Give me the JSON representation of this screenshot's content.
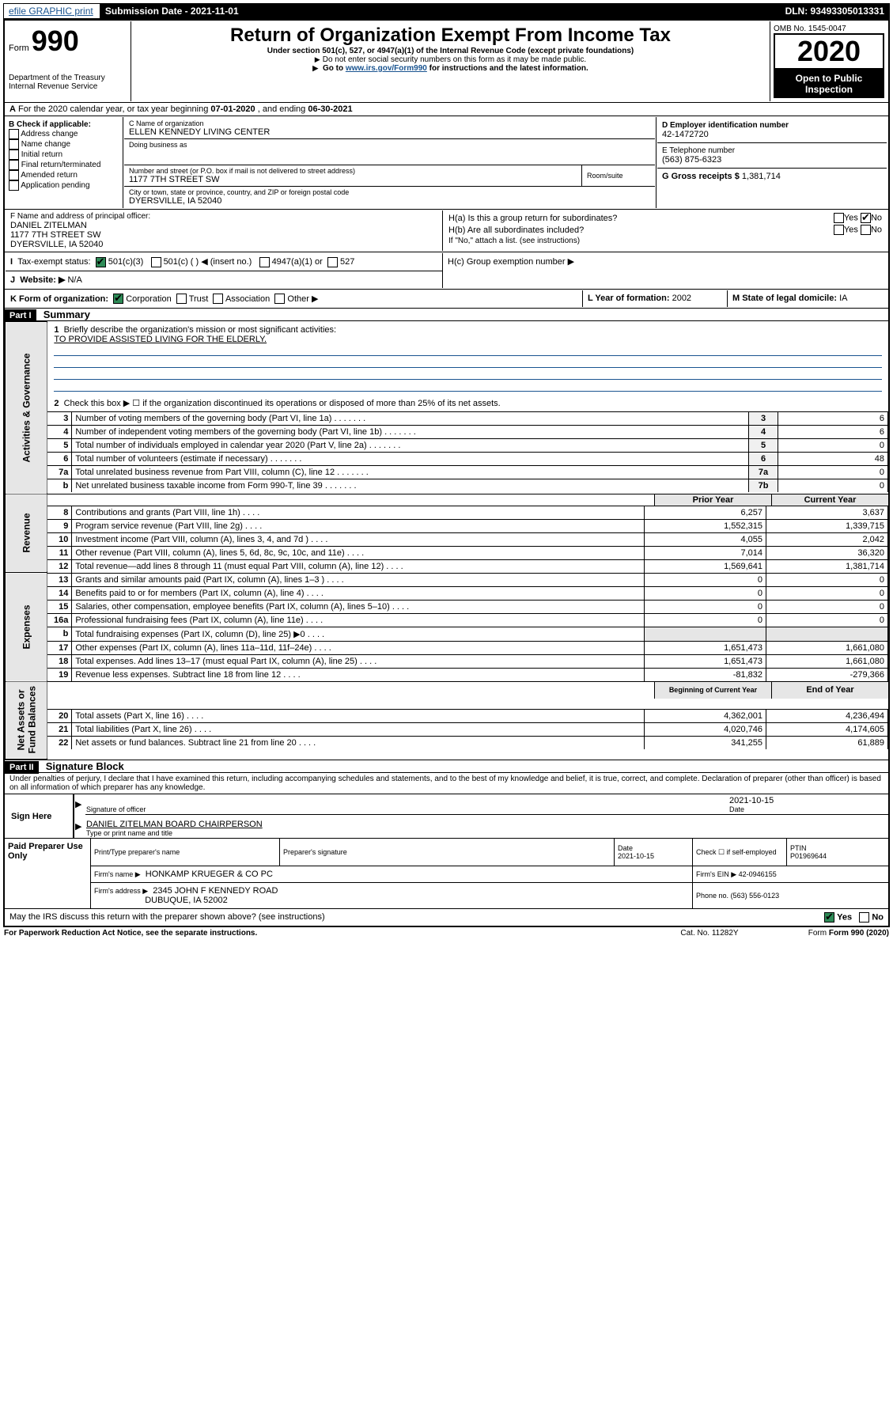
{
  "topbar": {
    "efile": "efile GRAPHIC print",
    "submission": "Submission Date - 2021-11-01",
    "dln": "DLN: 93493305013331"
  },
  "header": {
    "form_word": "Form",
    "form_no": "990",
    "title": "Return of Organization Exempt From Income Tax",
    "subtitle": "Under section 501(c), 527, or 4947(a)(1) of the Internal Revenue Code (except private foundations)",
    "note1": "Do not enter social security numbers on this form as it may be made public.",
    "note2_a": "Go to ",
    "note2_link": "www.irs.gov/Form990",
    "note2_b": " for instructions and the latest information.",
    "dept": "Department of the Treasury\nInternal Revenue Service",
    "omb": "OMB No. 1545-0047",
    "year": "2020",
    "open": "Open to Public\nInspection"
  },
  "A": {
    "text_a": "For the 2020 calendar year, or tax year beginning ",
    "begin": "07-01-2020",
    "text_b": " , and ending ",
    "end": "06-30-2021"
  },
  "B": {
    "label": "B Check if applicable:",
    "items": [
      "Address change",
      "Name change",
      "Initial return",
      "Final return/terminated",
      "Amended return",
      "Application pending"
    ]
  },
  "C": {
    "label": "C Name of organization",
    "org": "ELLEN KENNEDY LIVING CENTER",
    "dba_label": "Doing business as",
    "addr_label": "Number and street (or P.O. box if mail is not delivered to street address)",
    "room_label": "Room/suite",
    "addr": "1177 7TH STREET SW",
    "city_label": "City or town, state or province, country, and ZIP or foreign postal code",
    "city": "DYERSVILLE, IA  52040"
  },
  "D": {
    "label": "D Employer identification number",
    "val": "42-1472720"
  },
  "E": {
    "label": "E Telephone number",
    "val": "(563) 875-6323"
  },
  "G": {
    "label": "G Gross receipts $",
    "val": "1,381,714"
  },
  "F": {
    "label": "F  Name and address of principal officer:",
    "name": "DANIEL ZITELMAN",
    "addr1": "1177 7TH STREET SW",
    "addr2": "DYERSVILLE, IA  52040"
  },
  "H": {
    "a_label": "H(a)  Is this a group return for subordinates?",
    "a_yes": "Yes",
    "a_no": "No",
    "b_label": "H(b)  Are all subordinates included?",
    "b_yes": "Yes",
    "b_no": "No",
    "b_note": "If \"No,\" attach a list. (see instructions)",
    "c_label": "H(c)  Group exemption number ▶"
  },
  "I": {
    "label": "Tax-exempt status:",
    "opts": [
      "501(c)(3)",
      "501(c) (  ) ◀ (insert no.)",
      "4947(a)(1) or",
      "527"
    ]
  },
  "J": {
    "label": "Website: ▶",
    "val": "N/A"
  },
  "K": {
    "label": "K Form of organization:",
    "opts": [
      "Corporation",
      "Trust",
      "Association",
      "Other ▶"
    ]
  },
  "L": {
    "label": "L Year of formation:",
    "val": "2002"
  },
  "M": {
    "label": "M State of legal domicile:",
    "val": "IA"
  },
  "partI": {
    "hdr": "Part I",
    "title": "Summary",
    "q1a": "Briefly describe the organization's mission or most significant activities:",
    "q1b": "TO PROVIDE ASSISTED LIVING FOR THE ELDERLY.",
    "q2": "Check this box ▶ ☐  if the organization discontinued its operations or disposed of more than 25% of its net assets.",
    "lines_top": [
      {
        "n": "3",
        "d": "Number of voting members of the governing body (Part VI, line 1a)",
        "c": "3",
        "v": "6"
      },
      {
        "n": "4",
        "d": "Number of independent voting members of the governing body (Part VI, line 1b)",
        "c": "4",
        "v": "6"
      },
      {
        "n": "5",
        "d": "Total number of individuals employed in calendar year 2020 (Part V, line 2a)",
        "c": "5",
        "v": "0"
      },
      {
        "n": "6",
        "d": "Total number of volunteers (estimate if necessary)",
        "c": "6",
        "v": "48"
      },
      {
        "n": "7a",
        "d": "Total unrelated business revenue from Part VIII, column (C), line 12",
        "c": "7a",
        "v": "0"
      },
      {
        "n": "b",
        "d": "Net unrelated business taxable income from Form 990-T, line 39",
        "c": "7b",
        "v": "0"
      }
    ],
    "colhdr_prior": "Prior Year",
    "colhdr_current": "Current Year",
    "revenue": [
      {
        "n": "8",
        "d": "Contributions and grants (Part VIII, line 1h)",
        "p": "6,257",
        "c": "3,637"
      },
      {
        "n": "9",
        "d": "Program service revenue (Part VIII, line 2g)",
        "p": "1,552,315",
        "c": "1,339,715"
      },
      {
        "n": "10",
        "d": "Investment income (Part VIII, column (A), lines 3, 4, and 7d )",
        "p": "4,055",
        "c": "2,042"
      },
      {
        "n": "11",
        "d": "Other revenue (Part VIII, column (A), lines 5, 6d, 8c, 9c, 10c, and 11e)",
        "p": "7,014",
        "c": "36,320"
      },
      {
        "n": "12",
        "d": "Total revenue—add lines 8 through 11 (must equal Part VIII, column (A), line 12)",
        "p": "1,569,641",
        "c": "1,381,714"
      }
    ],
    "expenses": [
      {
        "n": "13",
        "d": "Grants and similar amounts paid (Part IX, column (A), lines 1–3 )",
        "p": "0",
        "c": "0"
      },
      {
        "n": "14",
        "d": "Benefits paid to or for members (Part IX, column (A), line 4)",
        "p": "0",
        "c": "0"
      },
      {
        "n": "15",
        "d": "Salaries, other compensation, employee benefits (Part IX, column (A), lines 5–10)",
        "p": "0",
        "c": "0"
      },
      {
        "n": "16a",
        "d": "Professional fundraising fees (Part IX, column (A), line 11e)",
        "p": "0",
        "c": "0"
      },
      {
        "n": "b",
        "d": "Total fundraising expenses (Part IX, column (D), line 25) ▶0",
        "p": "",
        "c": "",
        "shade": true
      },
      {
        "n": "17",
        "d": "Other expenses (Part IX, column (A), lines 11a–11d, 11f–24e)",
        "p": "1,651,473",
        "c": "1,661,080"
      },
      {
        "n": "18",
        "d": "Total expenses. Add lines 13–17 (must equal Part IX, column (A), line 25)",
        "p": "1,651,473",
        "c": "1,661,080"
      },
      {
        "n": "19",
        "d": "Revenue less expenses. Subtract line 18 from line 12",
        "p": "-81,832",
        "c": "-279,366"
      }
    ],
    "colhdr_begin": "Beginning of Current Year",
    "colhdr_end": "End of Year",
    "netassets": [
      {
        "n": "20",
        "d": "Total assets (Part X, line 16)",
        "p": "4,362,001",
        "c": "4,236,494"
      },
      {
        "n": "21",
        "d": "Total liabilities (Part X, line 26)",
        "p": "4,020,746",
        "c": "4,174,605"
      },
      {
        "n": "22",
        "d": "Net assets or fund balances. Subtract line 21 from line 20",
        "p": "341,255",
        "c": "61,889"
      }
    ],
    "tabs": [
      "Activities & Governance",
      "Revenue",
      "Expenses",
      "Net Assets or\nFund Balances"
    ]
  },
  "partII": {
    "hdr": "Part II",
    "title": "Signature Block",
    "decl": "Under penalties of perjury, I declare that I have examined this return, including accompanying schedules and statements, and to the best of my knowledge and belief, it is true, correct, and complete. Declaration of preparer (other than officer) is based on all information of which preparer has any knowledge.",
    "sign_here": "Sign Here",
    "sig_label": "Signature of officer",
    "date_label": "Date",
    "date_val": "2021-10-15",
    "officer": "DANIEL ZITELMAN  BOARD CHAIRPERSON",
    "officer_label": "Type or print name and title",
    "paid": "Paid Preparer Use Only",
    "prep_name_label": "Print/Type preparer's name",
    "prep_sig_label": "Preparer's signature",
    "prep_date_label": "Date",
    "prep_date": "2021-10-15",
    "check_self": "Check ☐ if self-employed",
    "ptin_label": "PTIN",
    "ptin": "P01969644",
    "firm_name_label": "Firm's name    ▶",
    "firm_name": "HONKAMP KRUEGER & CO PC",
    "firm_ein_label": "Firm's EIN ▶",
    "firm_ein": "42-0946155",
    "firm_addr_label": "Firm's address ▶",
    "firm_addr1": "2345 JOHN F KENNEDY ROAD",
    "firm_addr2": "DUBUQUE, IA  52002",
    "phone_label": "Phone no.",
    "phone": "(563) 556-0123",
    "discuss": "May the IRS discuss this return with the preparer shown above? (see instructions)",
    "yes": "Yes",
    "no": "No"
  },
  "footer": {
    "pra": "For Paperwork Reduction Act Notice, see the separate instructions.",
    "cat": "Cat. No. 11282Y",
    "form": "Form 990 (2020)"
  }
}
